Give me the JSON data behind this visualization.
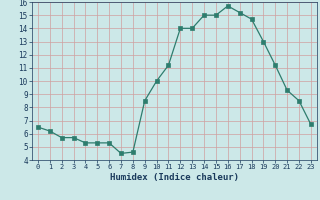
{
  "x": [
    0,
    1,
    2,
    3,
    4,
    5,
    6,
    7,
    8,
    9,
    10,
    11,
    12,
    13,
    14,
    15,
    16,
    17,
    18,
    19,
    20,
    21,
    22,
    23
  ],
  "y": [
    6.5,
    6.2,
    5.7,
    5.7,
    5.3,
    5.3,
    5.3,
    4.5,
    4.6,
    8.5,
    10.0,
    11.2,
    14.0,
    14.0,
    15.0,
    15.0,
    15.7,
    15.2,
    14.7,
    13.0,
    11.2,
    9.3,
    8.5,
    6.7
  ],
  "xlabel": "Humidex (Indice chaleur)",
  "xlim": [
    -0.5,
    23.5
  ],
  "ylim": [
    4,
    16
  ],
  "yticks": [
    4,
    5,
    6,
    7,
    8,
    9,
    10,
    11,
    12,
    13,
    14,
    15,
    16
  ],
  "xticks": [
    0,
    1,
    2,
    3,
    4,
    5,
    6,
    7,
    8,
    9,
    10,
    11,
    12,
    13,
    14,
    15,
    16,
    17,
    18,
    19,
    20,
    21,
    22,
    23
  ],
  "line_color": "#2e7d6e",
  "marker_color": "#2e7d6e",
  "bg_color": "#cce8e8",
  "grid_major_color": "#d0a0a0",
  "grid_minor_color": "#e0c8c8",
  "tick_color": "#1a3a5c",
  "label_color": "#1a3a5c"
}
